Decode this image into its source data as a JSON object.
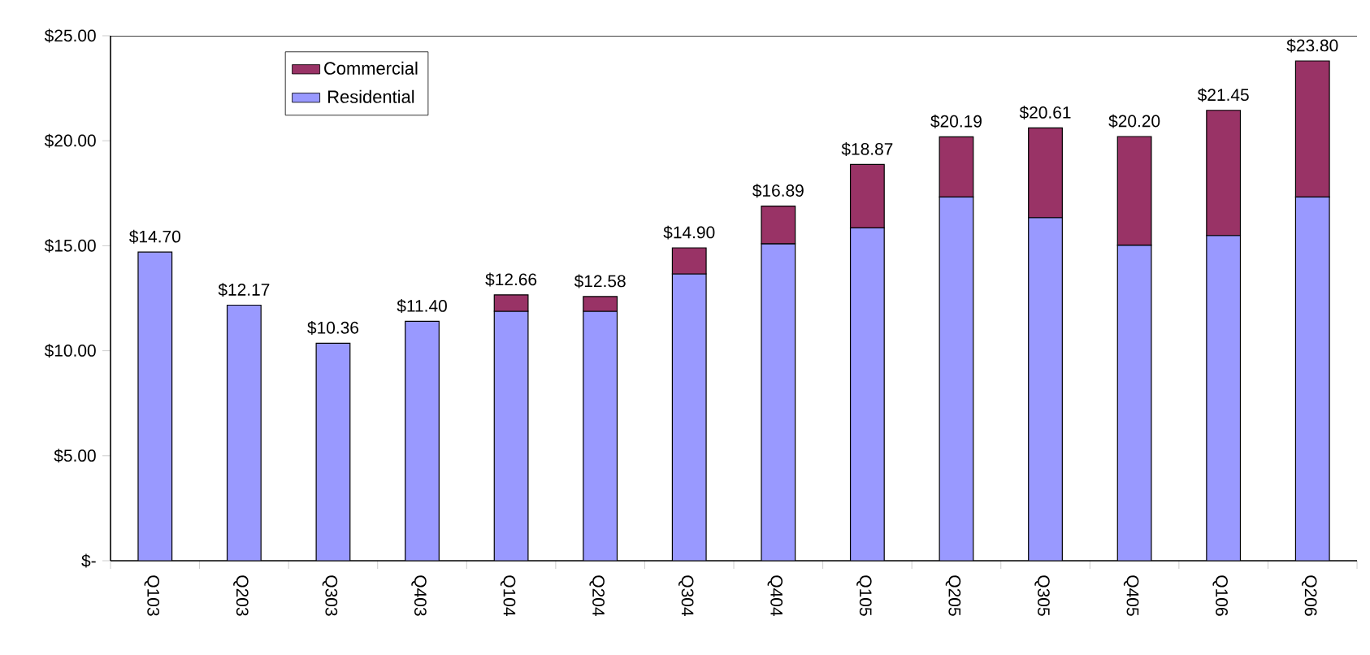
{
  "chart_data": {
    "type": "bar",
    "stacked": true,
    "categories": [
      "Q103",
      "Q203",
      "Q303",
      "Q403",
      "Q104",
      "Q204",
      "Q304",
      "Q404",
      "Q105",
      "Q205",
      "Q305",
      "Q405",
      "Q106",
      "Q206"
    ],
    "series": [
      {
        "name": "Residential",
        "color": "#9999ff",
        "values": [
          14.7,
          12.17,
          10.36,
          11.4,
          11.88,
          11.88,
          13.66,
          15.1,
          15.85,
          17.32,
          16.34,
          15.03,
          15.49,
          17.32
        ]
      },
      {
        "name": "Commercial",
        "color": "#993366",
        "values": [
          null,
          null,
          null,
          null,
          0.78,
          0.7,
          1.24,
          1.79,
          3.02,
          2.87,
          4.27,
          5.17,
          5.96,
          6.48
        ]
      }
    ],
    "totals": [
      "$14.70",
      "$12.17",
      "$10.36",
      "$11.40",
      "$12.66",
      "$12.58",
      "$14.90",
      "$16.89",
      "$18.87",
      "$20.19",
      "$20.61",
      "$20.20",
      "$21.45",
      "$23.80"
    ],
    "ylim": [
      0,
      25
    ],
    "yticks": [
      {
        "value": 0,
        "label": "$-"
      },
      {
        "value": 5,
        "label": "$5.00"
      },
      {
        "value": 10,
        "label": "$10.00"
      },
      {
        "value": 15,
        "label": "$15.00"
      },
      {
        "value": 20,
        "label": "$20.00"
      },
      {
        "value": 25,
        "label": "$25.00"
      }
    ],
    "legend": "top left",
    "grid": false
  }
}
